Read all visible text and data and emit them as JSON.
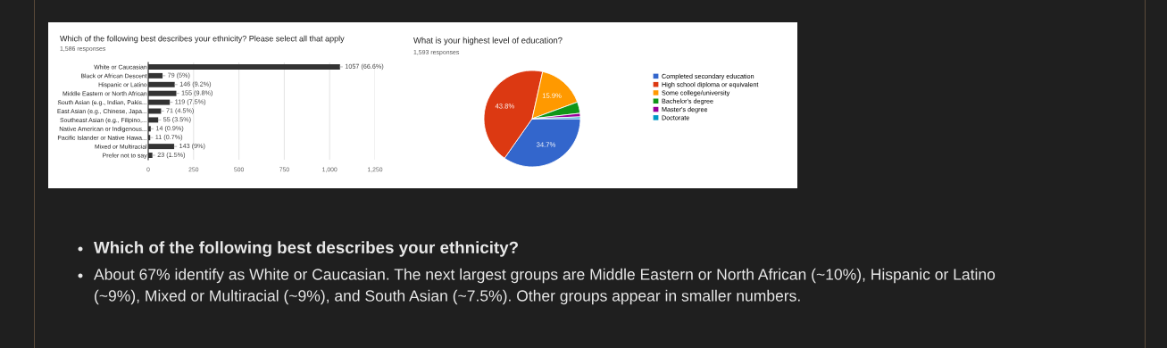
{
  "chart_data": [
    {
      "type": "bar",
      "orientation": "horizontal",
      "title": "Which of the following best describes your ethnicity? Please select all that apply",
      "subtitle": "1,586 responses",
      "categories": [
        "White or Caucasian",
        "Black or African Descent",
        "Hispanic or Latino",
        "Middle Eastern or North African",
        "South Asian (e.g., Indian, Pakis...",
        "East Asian (e.g., Chinese, Japa...",
        "Southeast Asian (e.g., Filipino,...",
        "Native American or Indigenous...",
        "Pacific Islander or Native Hawa...",
        "Mixed or Multiracial",
        "Prefer not to say"
      ],
      "values": [
        1057,
        79,
        146,
        155,
        119,
        71,
        55,
        14,
        11,
        143,
        23
      ],
      "value_labels": [
        "1057 (66.6%)",
        "79 (5%)",
        "146 (9.2%)",
        "155 (9.8%)",
        "119 (7.5%)",
        "71 (4.5%)",
        "55 (3.5%)",
        "14 (0.9%)",
        "11 (0.7%)",
        "143 (9%)",
        "23 (1.5%)"
      ],
      "color": "#333333",
      "xlim": [
        0,
        1250
      ],
      "xticks": [
        0,
        250,
        500,
        750,
        {
          "value": 1000,
          "label": "1,000"
        },
        {
          "value": 1250,
          "label": "1,250"
        }
      ],
      "grid": "x"
    },
    {
      "type": "pie",
      "title": "What is your highest level of education?",
      "subtitle": "1,593 responses",
      "categories": [
        "Completed secondary education",
        "High school diploma or equivalent",
        "Some college/university",
        "Bachelor's degree",
        "Master's degree",
        "Doctorate"
      ],
      "values": [
        34.7,
        43.8,
        15.9,
        3.8,
        1.2,
        0.6
      ],
      "value_labels": [
        "34.7%",
        "43.8%",
        "15.9%",
        null,
        null,
        null
      ],
      "colors": [
        "#3366cc",
        "#dc3912",
        "#ff9900",
        "#109618",
        "#990099",
        "#0099c6"
      ],
      "legend": "right"
    },
    {
      "type": "other",
      "annotations": [
        "Which of the following best describes your ethnicity?",
        "About 67% identify as White or Caucasian. The next largest groups are Middle Eastern or North African (~10%), Hispanic or Latino",
        "(~9%), Mixed or Multiracial (~9%), and South Asian (~7.5%). Other groups appear in smaller numbers."
      ]
    }
  ]
}
